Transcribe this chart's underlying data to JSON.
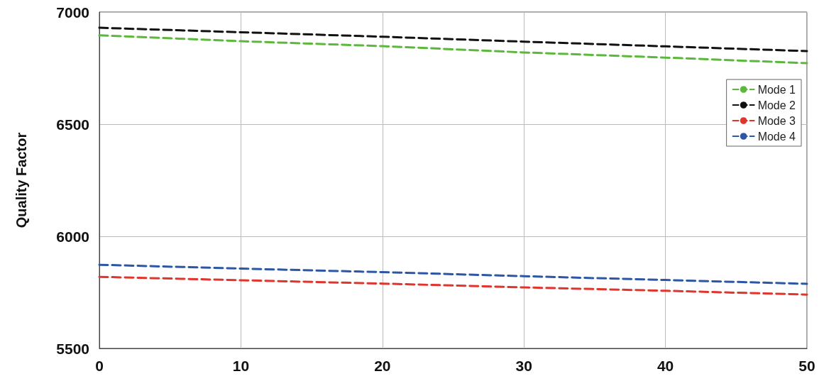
{
  "chart_data": {
    "type": "line",
    "ylabel": "Quality Factor",
    "x": [
      0,
      10,
      20,
      30,
      40,
      50
    ],
    "series": [
      {
        "name": "Mode 1",
        "color": "#5cb83c",
        "values": [
          6896,
          6870,
          6848,
          6820,
          6797,
          6772
        ]
      },
      {
        "name": "Mode 2",
        "color": "#111111",
        "values": [
          6930,
          6910,
          6890,
          6868,
          6847,
          6826
        ]
      },
      {
        "name": "Mode 3",
        "color": "#e0342c",
        "values": [
          5819,
          5804,
          5789,
          5772,
          5757,
          5740
        ]
      },
      {
        "name": "Mode 4",
        "color": "#2d56a6",
        "values": [
          5873,
          5856,
          5840,
          5822,
          5805,
          5788
        ]
      }
    ],
    "xlim": [
      0,
      50
    ],
    "xticks": [
      0,
      10,
      20,
      30,
      40,
      50
    ],
    "ylim": [
      5500,
      7000
    ],
    "yticks": [
      5500,
      6000,
      6500,
      7000
    ],
    "grid": true,
    "legend": "right",
    "marker": "none",
    "line_style": "dashed"
  }
}
